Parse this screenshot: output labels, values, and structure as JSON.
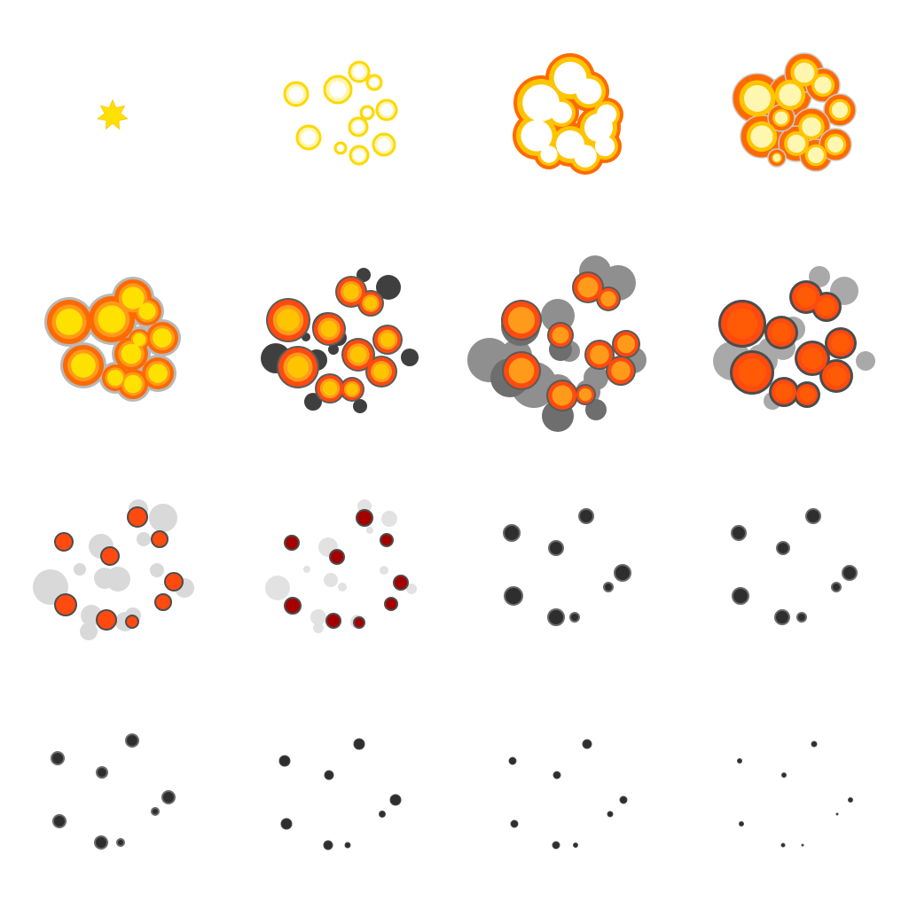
{
  "sheet": {
    "columns": 4,
    "rows": 4,
    "frame_count": 16,
    "background": "#ffffff"
  },
  "palette": {
    "spark": "#ffe100",
    "yellow_ring": "#ffe45a",
    "yellow_fill": "#fff6b0",
    "white_core": "#ffffff",
    "orange": "#ff6a00",
    "orange_light": "#ff9a1a",
    "amber": "#ffc400",
    "red_orange": "#ff4a10",
    "dark_red": "#a50000",
    "smoke_dark": "#3f3f3f",
    "smoke_mid": "#777777",
    "smoke_light": "#d9d9d9",
    "ring_gray": "#9a9a9a",
    "ash": "#2e2e2e"
  },
  "frames": [
    {
      "index": 1,
      "stage": "spark"
    },
    {
      "index": 2,
      "stage": "yellow-rings"
    },
    {
      "index": 3,
      "stage": "white-hot-core"
    },
    {
      "index": 4,
      "stage": "bright-fireball"
    },
    {
      "index": 5,
      "stage": "yellow-fireball"
    },
    {
      "index": 6,
      "stage": "fireball-dark-smoke"
    },
    {
      "index": 7,
      "stage": "fireball-gray-smoke"
    },
    {
      "index": 8,
      "stage": "red-fireball-smoke"
    },
    {
      "index": 9,
      "stage": "dissipating-embers"
    },
    {
      "index": 10,
      "stage": "dark-embers"
    },
    {
      "index": 11,
      "stage": "ash-particles"
    },
    {
      "index": 12,
      "stage": "ash-particles"
    },
    {
      "index": 13,
      "stage": "ash-particles"
    },
    {
      "index": 14,
      "stage": "shrinking-ash"
    },
    {
      "index": 15,
      "stage": "tiny-ash"
    },
    {
      "index": 16,
      "stage": "final-specks"
    }
  ]
}
